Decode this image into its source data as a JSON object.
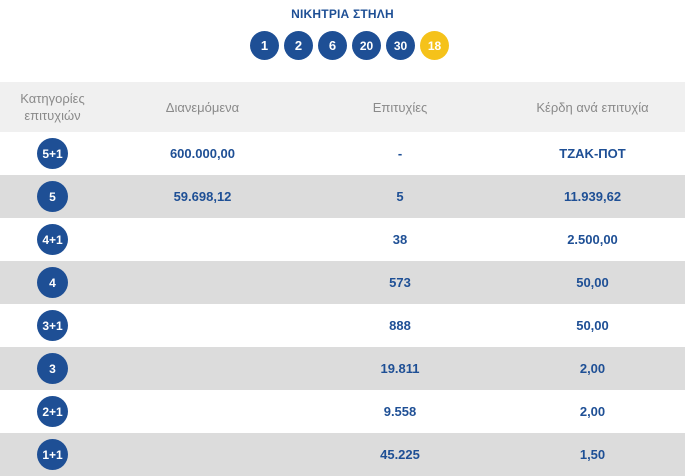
{
  "winning": {
    "title": "ΝΙΚΗΤΡΙΑ ΣΤΗΛΗ",
    "numbers": [
      "1",
      "2",
      "6",
      "20",
      "30"
    ],
    "joker": "18",
    "main_ball_color": "#1e4f95",
    "joker_ball_color": "#f5c21a"
  },
  "table": {
    "headers": {
      "categories_line1": "Κατηγορίες",
      "categories_line2": "επιτυχιών",
      "distributed": "Διανεμόμενα",
      "winners": "Επιτυχίες",
      "prize": "Κέρδη ανά επιτυχία"
    },
    "rows": [
      {
        "category": "5+1",
        "distributed": "600.000,00",
        "winners": "-",
        "prize": "ΤΖΑΚ-ΠΟΤ"
      },
      {
        "category": "5",
        "distributed": "59.698,12",
        "winners": "5",
        "prize": "11.939,62"
      },
      {
        "category": "4+1",
        "distributed": "",
        "winners": "38",
        "prize": "2.500,00"
      },
      {
        "category": "4",
        "distributed": "",
        "winners": "573",
        "prize": "50,00"
      },
      {
        "category": "3+1",
        "distributed": "",
        "winners": "888",
        "prize": "50,00"
      },
      {
        "category": "3",
        "distributed": "",
        "winners": "19.811",
        "prize": "2,00"
      },
      {
        "category": "2+1",
        "distributed": "",
        "winners": "9.558",
        "prize": "2,00"
      },
      {
        "category": "1+1",
        "distributed": "",
        "winners": "45.225",
        "prize": "1,50"
      }
    ],
    "text_color": "#1e4f95",
    "row_alt_color": "#dcdcdc",
    "header_bg": "#f0f0f0"
  }
}
